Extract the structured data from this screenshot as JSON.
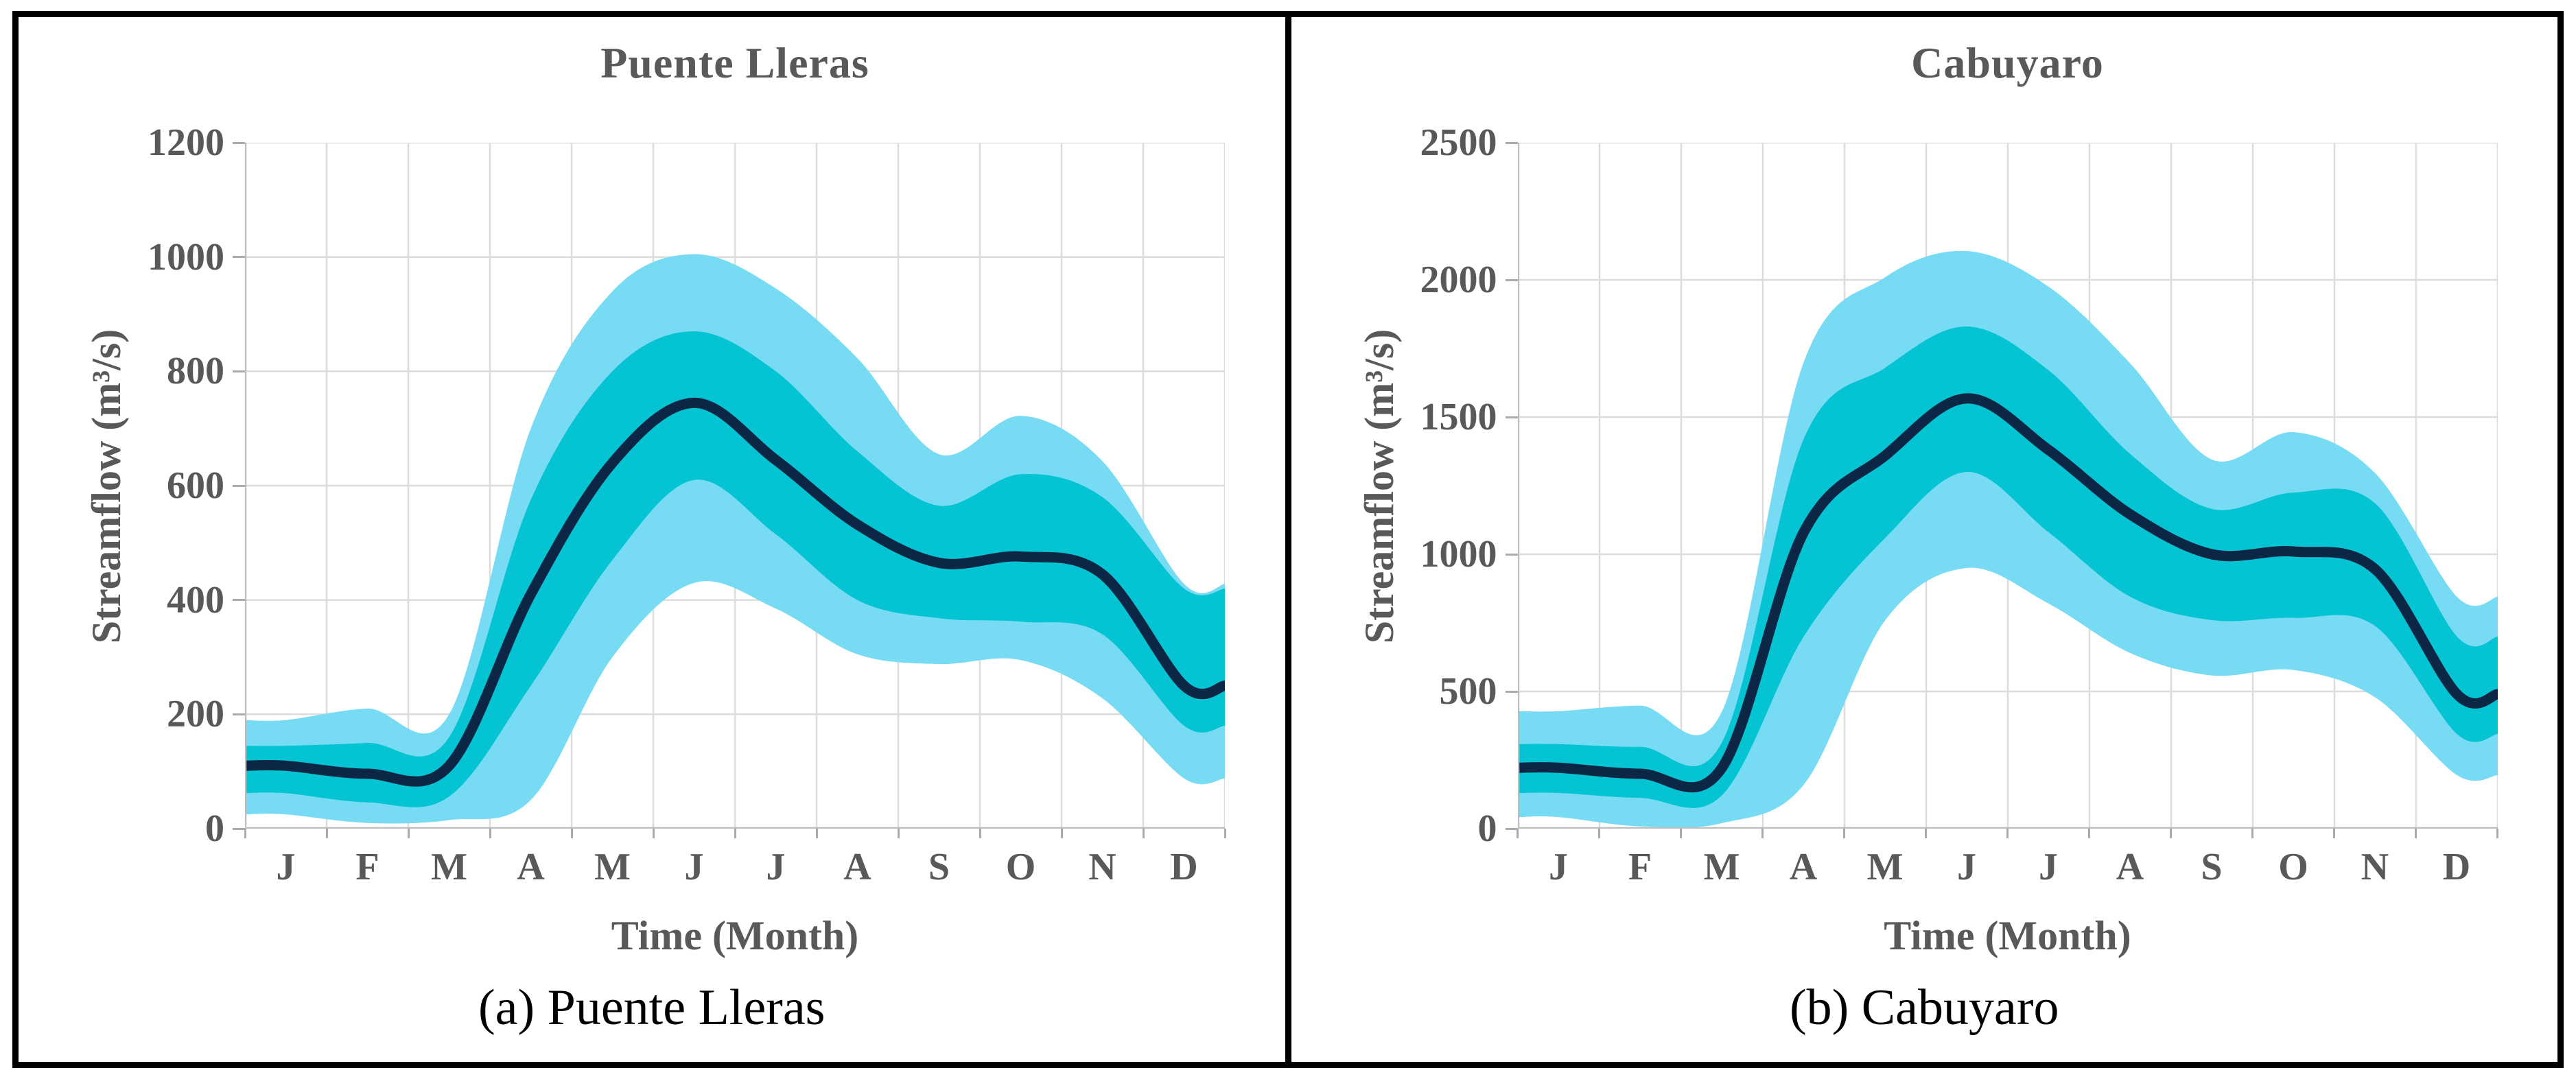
{
  "figure": {
    "background": "#ffffff",
    "border_color": "#000000"
  },
  "styles": {
    "grid_color": "#DCDCDC",
    "axis_color": "#BDBDBD",
    "tick_mark_color": "#ABABAB",
    "tick_text_color": "#595959",
    "title_color": "#595959",
    "caption_color": "#000000",
    "mean_line_color": "#0B2745",
    "inner_band_color": "#04C3D2",
    "outer_band_color": "#76DBF3"
  },
  "chart_data": [
    {
      "type": "area",
      "title": "Puente Lleras",
      "caption": "(a) Puente Lleras",
      "xlabel": "Time (Month)",
      "ylabel": "Streamflow (m³/s)",
      "x_ticks": [
        "J",
        "F",
        "M",
        "A",
        "M",
        "J",
        "J",
        "A",
        "S",
        "O",
        "N",
        "D"
      ],
      "y_ticks": [
        1200,
        1000,
        800,
        600,
        400,
        200,
        0
      ],
      "ylim": [
        0,
        1200
      ],
      "grid": true,
      "legend": false,
      "series": [
        {
          "name": "outer-band",
          "kind": "band",
          "color_key": "outer_band_color",
          "low": [
            25,
            10,
            15,
            50,
            300,
            430,
            385,
            305,
            288,
            295,
            228,
            88
          ],
          "high": [
            190,
            210,
            200,
            700,
            940,
            1005,
            945,
            823,
            655,
            722,
            643,
            428
          ]
        },
        {
          "name": "inner-band",
          "kind": "band",
          "color_key": "inner_band_color",
          "low": [
            62,
            46,
            56,
            250,
            470,
            610,
            515,
            400,
            368,
            362,
            340,
            180
          ],
          "high": [
            145,
            150,
            160,
            575,
            800,
            870,
            800,
            660,
            565,
            620,
            580,
            420
          ]
        },
        {
          "name": "mean",
          "kind": "line",
          "color_key": "mean_line_color",
          "values": [
            110,
            96,
            110,
            410,
            640,
            745,
            645,
            532,
            465,
            476,
            445,
            250
          ]
        }
      ]
    },
    {
      "type": "area",
      "title": "Cabuyaro",
      "caption": "(b) Cabuyaro",
      "xlabel": "Time (Month)",
      "ylabel": "Streamflow (m³/s)",
      "x_ticks": [
        "J",
        "F",
        "M",
        "A",
        "M",
        "J",
        "J",
        "A",
        "S",
        "O",
        "N",
        "D"
      ],
      "y_ticks": [
        2500,
        2000,
        1500,
        1000,
        500,
        0
      ],
      "ylim": [
        0,
        2500
      ],
      "grid": true,
      "legend": false,
      "series": [
        {
          "name": "outer-band",
          "kind": "band",
          "color_key": "outer_band_color",
          "low": [
            42,
            8,
            20,
            160,
            760,
            950,
            820,
            640,
            558,
            578,
            478,
            195
          ],
          "high": [
            428,
            448,
            428,
            1700,
            2010,
            2105,
            1975,
            1695,
            1345,
            1445,
            1295,
            845
          ]
        },
        {
          "name": "inner-band",
          "kind": "band",
          "color_key": "inner_band_color",
          "low": [
            130,
            112,
            122,
            700,
            1060,
            1300,
            1080,
            845,
            760,
            768,
            738,
            345
          ],
          "high": [
            308,
            298,
            315,
            1420,
            1680,
            1830,
            1670,
            1365,
            1165,
            1225,
            1185,
            700
          ]
        },
        {
          "name": "mean",
          "kind": "line",
          "color_key": "mean_line_color",
          "values": [
            222,
            200,
            222,
            1080,
            1360,
            1568,
            1380,
            1145,
            1000,
            1010,
            945,
            490
          ]
        }
      ]
    }
  ]
}
